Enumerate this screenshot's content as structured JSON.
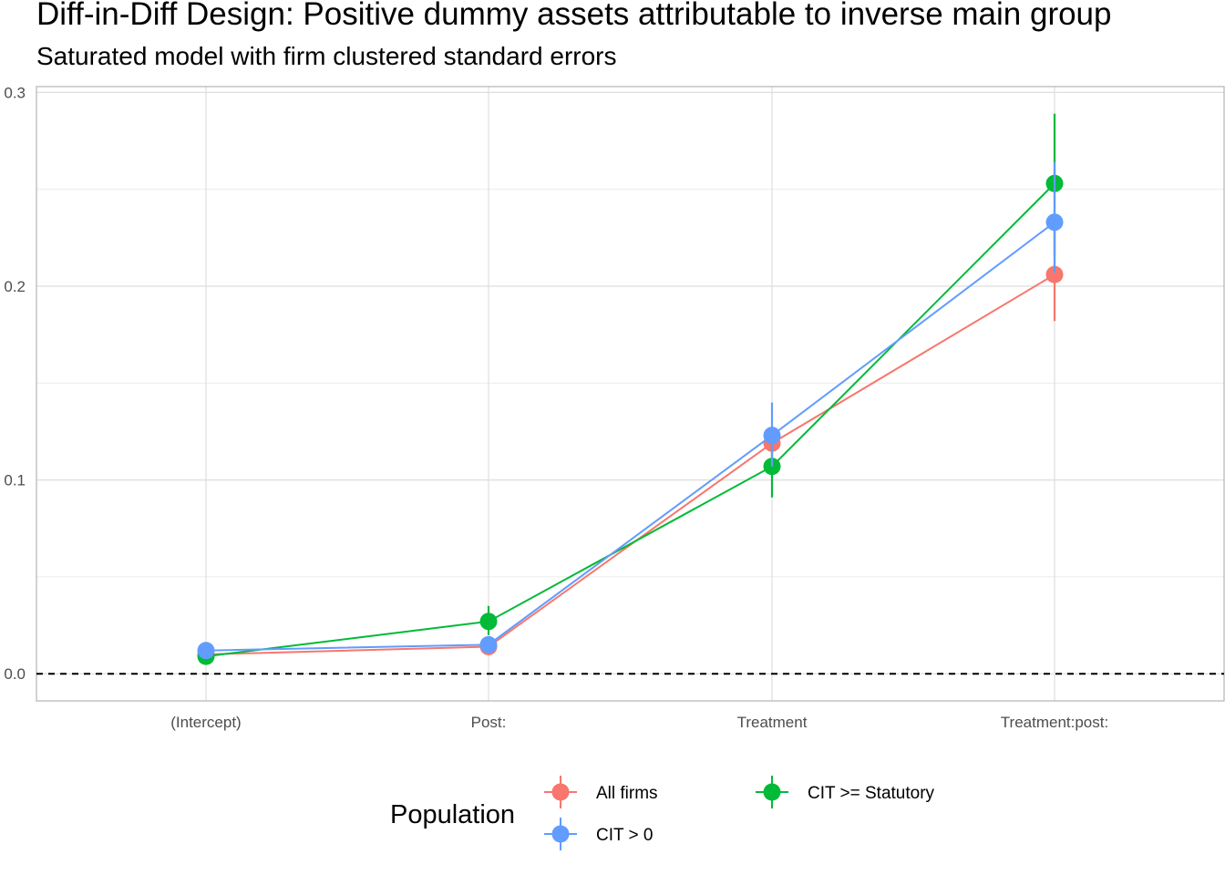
{
  "chart_data": {
    "type": "line",
    "title": "Diff-in-Diff Design: Positive dummy assets attributable to inverse main group",
    "subtitle": "Saturated model with firm clustered standard errors",
    "xlabel": "",
    "ylabel": "",
    "categories": [
      "(Intercept)",
      "Post:",
      "Treatment",
      "Treatment:post:"
    ],
    "ylim": [
      -0.014,
      0.303
    ],
    "yticks": [
      0.0,
      0.1,
      0.2,
      0.3
    ],
    "ytick_labels": [
      "0.0",
      "0.1",
      "0.2",
      "0.3"
    ],
    "reference_line": {
      "y": 0,
      "style": "dashed"
    },
    "grid": true,
    "legend": {
      "title": "Population",
      "position": "bottom"
    },
    "series": [
      {
        "name": "All firms",
        "color": "#F8766D",
        "values": [
          0.01,
          0.014,
          0.119,
          0.206
        ],
        "lower": [
          0.008,
          0.011,
          0.112,
          0.182
        ],
        "upper": [
          0.012,
          0.018,
          0.126,
          0.23
        ]
      },
      {
        "name": "CIT >= Statutory",
        "color": "#00BA38",
        "values": [
          0.009,
          0.027,
          0.107,
          0.253
        ],
        "lower": [
          0.006,
          0.02,
          0.091,
          0.216
        ],
        "upper": [
          0.012,
          0.035,
          0.123,
          0.289
        ]
      },
      {
        "name": "CIT > 0",
        "color": "#619CFF",
        "values": [
          0.012,
          0.015,
          0.123,
          0.233
        ],
        "lower": [
          0.01,
          0.011,
          0.107,
          0.207
        ],
        "upper": [
          0.014,
          0.019,
          0.14,
          0.264
        ]
      }
    ],
    "legend_order": [
      0,
      2,
      1
    ]
  }
}
